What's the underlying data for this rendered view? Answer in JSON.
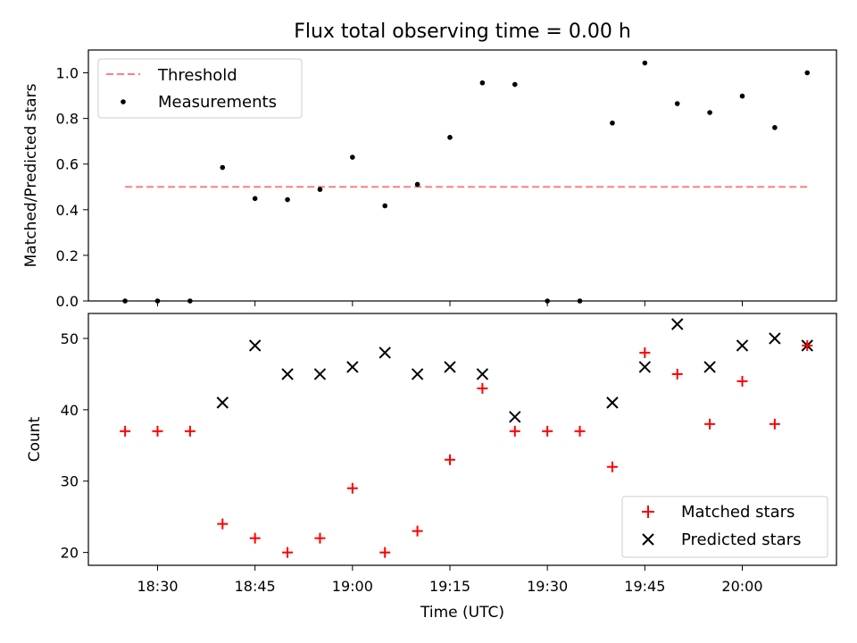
{
  "chart_data": [
    {
      "type": "scatter",
      "title": "Flux total observing time = 0.00 h",
      "xlabel": "",
      "ylabel": "Matched/Predicted stars",
      "ylim": [
        0,
        1.1
      ],
      "yticks": [
        "0.0",
        "0.2",
        "0.4",
        "0.6",
        "0.8",
        "1.0"
      ],
      "legend_position": "top-left",
      "threshold": {
        "name": "Threshold",
        "value": 0.5,
        "x_start": "18:25",
        "x_end": "20:10",
        "color": "#ff7f7f"
      },
      "series": [
        {
          "name": "Measurements",
          "color": "#000000",
          "x": [
            "18:25",
            "18:30",
            "18:35",
            "18:40",
            "18:45",
            "18:50",
            "18:55",
            "19:00",
            "19:05",
            "19:10",
            "19:15",
            "19:20",
            "19:25",
            "19:30",
            "19:35",
            "19:40",
            "19:45",
            "19:50",
            "19:55",
            "20:00",
            "20:05",
            "20:10"
          ],
          "y": [
            0.0,
            0.0,
            0.0,
            0.585,
            0.449,
            0.444,
            0.489,
            0.63,
            0.417,
            0.511,
            0.717,
            0.956,
            0.949,
            0.0,
            0.0,
            0.78,
            1.043,
            0.865,
            0.826,
            0.898,
            0.76,
            1.0
          ]
        }
      ]
    },
    {
      "type": "scatter",
      "title": "",
      "xlabel": "Time (UTC)",
      "ylabel": "Count",
      "ylim": [
        18.2,
        53.5
      ],
      "yticks": [
        "20",
        "30",
        "40",
        "50"
      ],
      "legend_position": "bottom-right",
      "xticks": [
        "18:30",
        "18:45",
        "19:00",
        "19:15",
        "19:30",
        "19:45",
        "20:00"
      ],
      "series": [
        {
          "name": "Matched stars",
          "marker": "plus",
          "color": "#ff0000",
          "x": [
            "18:25",
            "18:30",
            "18:35",
            "18:40",
            "18:45",
            "18:50",
            "18:55",
            "19:00",
            "19:05",
            "19:10",
            "19:15",
            "19:20",
            "19:25",
            "19:30",
            "19:35",
            "19:40",
            "19:45",
            "19:50",
            "19:55",
            "20:00",
            "20:05",
            "20:10"
          ],
          "y": [
            37,
            37,
            37,
            24,
            22,
            20,
            22,
            29,
            20,
            23,
            33,
            43,
            37,
            37,
            37,
            32,
            48,
            45,
            38,
            44,
            38,
            49
          ]
        },
        {
          "name": "Predicted stars",
          "marker": "x",
          "color": "#000000",
          "x": [
            "18:40",
            "18:45",
            "18:50",
            "18:55",
            "19:00",
            "19:05",
            "19:10",
            "19:15",
            "19:20",
            "19:25",
            "19:40",
            "19:45",
            "19:50",
            "19:55",
            "20:00",
            "20:05",
            "20:10"
          ],
          "y": [
            41,
            49,
            45,
            45,
            46,
            48,
            45,
            46,
            45,
            39,
            41,
            46,
            52,
            46,
            49,
            50,
            49
          ]
        }
      ]
    }
  ]
}
